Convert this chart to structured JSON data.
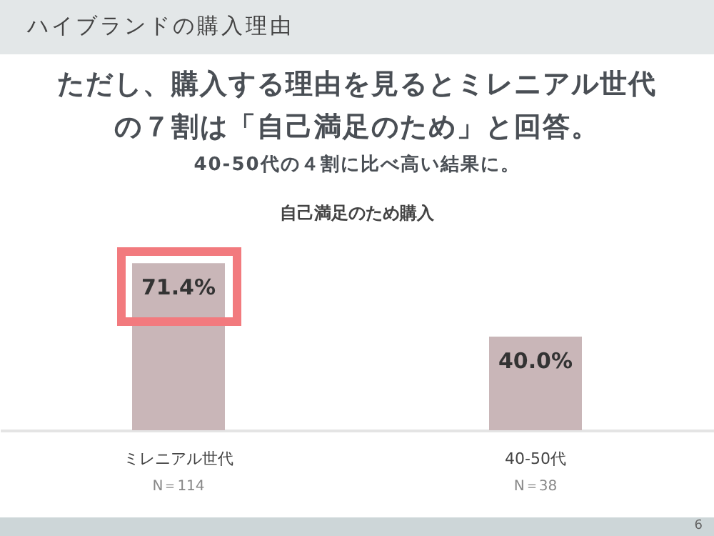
{
  "chart_data": {
    "type": "bar",
    "title": "ハイブランドの購入理由",
    "subtitle": "ただし、購入する理由を見るとミレニアル世代の７割は「自己満足のため」と回答。",
    "annotations": [
      "40-50代の４割に比べ高い結果に。",
      "自己満足のため購入",
      "N＝114",
      "N＝38",
      "6"
    ],
    "categories": [
      "ミレニアル世代",
      "40-50代"
    ],
    "values": [
      71.4,
      40.0
    ],
    "value_labels": [
      "71.4%",
      "40.0%"
    ],
    "color": "#c9b6b8"
  }
}
